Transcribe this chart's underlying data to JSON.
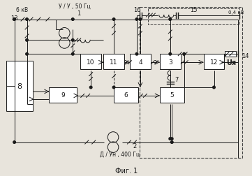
{
  "title": "Фиг. 1",
  "label_6kv": "6 кВ",
  "label_04kv": "0,4 кВ",
  "label_13": "13",
  "label_14": "14",
  "label_16": "16",
  "label_15": "15",
  "label_1": "1",
  "label_2": "2",
  "label_3": "3",
  "label_4": "4",
  "label_5": "5",
  "label_6": "6",
  "label_7": "7",
  "label_8": "8",
  "label_9": "9",
  "label_10": "10",
  "label_11": "11",
  "label_12": "12",
  "label_transformer1": "У / У , 50 Гц",
  "label_transformer2": "Д / Ун , 400 Гц",
  "label_us": "Uя",
  "bg_color": "#e8e4dc",
  "line_color": "#1a1a1a",
  "box_color": "#ffffff",
  "dashed_color": "#444444"
}
